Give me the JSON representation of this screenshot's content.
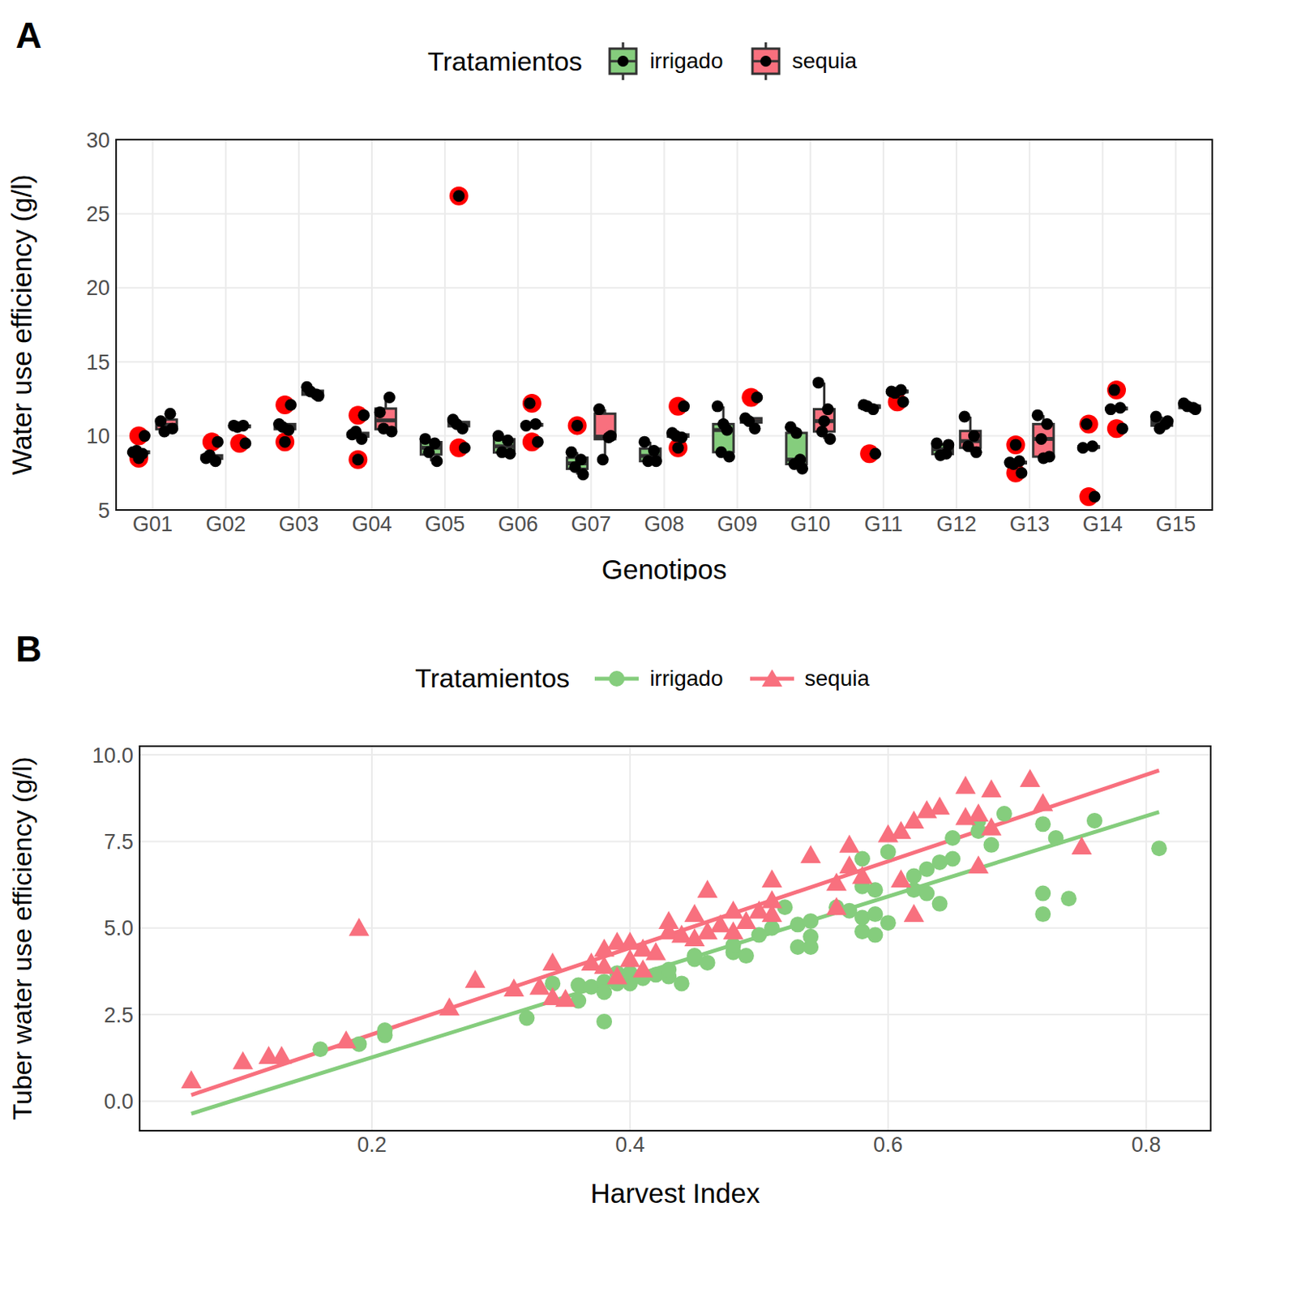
{
  "chart_data": [
    {
      "type": "box",
      "title": "A",
      "x_label": "Genotipos",
      "y_label": "Water use efficiency (g/l)",
      "legend_title": "Tratamientos",
      "legend": "top",
      "grid": true,
      "categories": [
        "G01",
        "G02",
        "G03",
        "G04",
        "G05",
        "G06",
        "G07",
        "G08",
        "G09",
        "G10",
        "G11",
        "G12",
        "G13",
        "G14",
        "G15"
      ],
      "ylim": [
        5,
        30
      ],
      "yticks": [
        5,
        10,
        15,
        20,
        25,
        30
      ],
      "series": [
        {
          "name": "irrigado",
          "color": "#85CD7D",
          "boxes": [
            {
              "low": 8.8,
              "q1": 8.85,
              "median": 8.9,
              "q3": 8.95,
              "high": 9.0,
              "points": [
                8.9,
                8.8,
                9.0,
                10.0,
                8.5
              ],
              "outliers": [
                10.0,
                8.5
              ]
            },
            {
              "low": 8.3,
              "q1": 8.45,
              "median": 8.55,
              "q3": 8.7,
              "high": 8.7,
              "points": [
                8.5,
                8.3,
                8.7,
                9.6
              ],
              "outliers": [
                9.6
              ]
            },
            {
              "low": 10.4,
              "q1": 10.45,
              "median": 10.6,
              "q3": 10.8,
              "high": 10.8,
              "points": [
                10.8,
                10.4,
                10.6,
                12.1,
                9.6
              ],
              "outliers": [
                12.1,
                9.6
              ]
            },
            {
              "low": 9.8,
              "q1": 9.95,
              "median": 10.1,
              "q3": 10.2,
              "high": 10.3,
              "points": [
                10.1,
                9.8,
                10.3,
                11.4,
                8.4
              ],
              "outliers": [
                11.4,
                8.4
              ]
            },
            {
              "low": 8.3,
              "q1": 8.75,
              "median": 9.2,
              "q3": 9.58,
              "high": 9.8,
              "points": [
                9.8,
                9.5,
                8.9,
                8.3
              ],
              "outliers": []
            },
            {
              "low": 8.8,
              "q1": 8.88,
              "median": 9.3,
              "q3": 9.78,
              "high": 10.0,
              "points": [
                10.0,
                9.7,
                8.9,
                8.8
              ],
              "outliers": []
            },
            {
              "low": 7.4,
              "q1": 7.78,
              "median": 8.15,
              "q3": 8.53,
              "high": 8.9,
              "points": [
                8.9,
                8.4,
                7.9,
                7.4,
                10.7
              ],
              "outliers": [
                10.7
              ]
            },
            {
              "low": 8.3,
              "q1": 8.3,
              "median": 8.65,
              "q3": 9.15,
              "high": 9.6,
              "points": [
                9.6,
                9.0,
                8.3,
                8.3
              ],
              "outliers": []
            },
            {
              "low": 8.6,
              "q1": 8.9,
              "median": 10.4,
              "q3": 10.8,
              "high": 12.0,
              "points": [
                12.0,
                10.4,
                8.9,
                8.6,
                10.8
              ],
              "outliers": []
            },
            {
              "low": 7.8,
              "q1": 8.1,
              "median": 8.4,
              "q3": 10.2,
              "high": 10.6,
              "points": [
                10.6,
                8.4,
                8.1,
                7.8,
                10.2
              ],
              "outliers": []
            },
            {
              "low": 11.8,
              "q1": 11.9,
              "median": 12.0,
              "q3": 12.05,
              "high": 12.1,
              "points": [
                12.1,
                11.8,
                12.0,
                8.8
              ],
              "outliers": [
                8.8
              ]
            },
            {
              "low": 8.7,
              "q1": 8.78,
              "median": 9.1,
              "q3": 9.43,
              "high": 9.5,
              "points": [
                9.5,
                8.8,
                8.7,
                9.4
              ],
              "outliers": []
            },
            {
              "low": 8.1,
              "q1": 8.15,
              "median": 8.2,
              "q3": 8.25,
              "high": 8.3,
              "points": [
                8.2,
                8.3,
                8.1,
                7.5,
                9.4
              ],
              "outliers": [
                7.5,
                9.4
              ]
            },
            {
              "low": 9.2,
              "q1": 9.2,
              "median": 9.25,
              "q3": 9.3,
              "high": 9.3,
              "points": [
                9.2,
                9.3,
                10.8,
                5.9
              ],
              "outliers": [
                10.8,
                5.9
              ]
            },
            {
              "low": 10.5,
              "q1": 10.7,
              "median": 10.9,
              "q3": 11.08,
              "high": 11.3,
              "points": [
                11.3,
                10.8,
                10.5,
                11.0
              ],
              "outliers": []
            }
          ]
        },
        {
          "name": "sequia",
          "color": "#F8707E",
          "boxes": [
            {
              "low": 10.3,
              "q1": 10.45,
              "median": 10.75,
              "q3": 11.1,
              "high": 11.5,
              "points": [
                11.0,
                11.5,
                10.3,
                10.5
              ],
              "outliers": []
            },
            {
              "low": 10.6,
              "q1": 10.6,
              "median": 10.65,
              "q3": 10.7,
              "high": 10.7,
              "points": [
                10.7,
                10.7,
                10.6,
                9.5
              ],
              "outliers": [
                9.5
              ]
            },
            {
              "low": 12.7,
              "q1": 12.78,
              "median": 12.9,
              "q3": 13.05,
              "high": 13.3,
              "points": [
                13.3,
                12.8,
                13.0,
                12.7
              ],
              "outliers": []
            },
            {
              "low": 10.3,
              "q1": 10.45,
              "median": 11.05,
              "q3": 11.85,
              "high": 12.6,
              "points": [
                11.6,
                12.6,
                10.5,
                10.3
              ],
              "outliers": []
            },
            {
              "low": 10.5,
              "q1": 10.65,
              "median": 10.8,
              "q3": 10.95,
              "high": 11.1,
              "points": [
                11.1,
                10.5,
                10.8,
                9.2,
                26.2
              ],
              "outliers": [
                9.2,
                26.2
              ]
            },
            {
              "low": 10.7,
              "q1": 10.7,
              "median": 10.75,
              "q3": 10.8,
              "high": 10.8,
              "points": [
                10.7,
                10.8,
                12.2,
                9.6
              ],
              "outliers": [
                12.2,
                9.6
              ]
            },
            {
              "low": 8.4,
              "q1": 9.78,
              "median": 9.95,
              "q3": 11.5,
              "high": 11.8,
              "points": [
                11.8,
                9.9,
                8.4,
                10.0
              ],
              "outliers": []
            },
            {
              "low": 9.9,
              "q1": 9.95,
              "median": 10.0,
              "q3": 10.1,
              "high": 10.2,
              "points": [
                10.2,
                9.9,
                10.0,
                12.0,
                9.2
              ],
              "outliers": [
                12.0,
                9.2
              ]
            },
            {
              "low": 10.5,
              "q1": 10.9,
              "median": 11.0,
              "q3": 11.2,
              "high": 11.2,
              "points": [
                11.2,
                10.5,
                11.0,
                12.6
              ],
              "outliers": [
                12.6
              ]
            },
            {
              "low": 9.8,
              "q1": 10.3,
              "median": 11.0,
              "q3": 11.8,
              "high": 13.6,
              "points": [
                13.6,
                11.8,
                10.3,
                9.8,
                11.0
              ],
              "outliers": []
            },
            {
              "low": 12.9,
              "q1": 12.95,
              "median": 13.0,
              "q3": 13.05,
              "high": 13.1,
              "points": [
                13.0,
                13.1,
                12.9,
                12.3
              ],
              "outliers": [
                12.3
              ]
            },
            {
              "low": 8.9,
              "q1": 9.2,
              "median": 9.65,
              "q3": 10.33,
              "high": 11.3,
              "points": [
                11.3,
                10.0,
                9.3,
                8.9
              ],
              "outliers": []
            },
            {
              "low": 8.5,
              "q1": 8.6,
              "median": 9.8,
              "q3": 10.8,
              "high": 11.4,
              "points": [
                11.4,
                10.8,
                9.8,
                8.6,
                8.5
              ],
              "outliers": []
            },
            {
              "low": 11.8,
              "q1": 11.8,
              "median": 11.85,
              "q3": 11.9,
              "high": 11.9,
              "points": [
                11.8,
                11.9,
                13.1,
                10.5
              ],
              "outliers": [
                13.1,
                10.5
              ]
            },
            {
              "low": 11.8,
              "q1": 11.88,
              "median": 11.95,
              "q3": 12.05,
              "high": 12.2,
              "points": [
                12.2,
                11.9,
                12.0,
                11.8
              ],
              "outliers": []
            }
          ]
        }
      ]
    },
    {
      "type": "scatter",
      "title": "B",
      "x_label": "Harvest Index",
      "y_label": "Tuber water use efficiency (g/l)",
      "legend_title": "Tratamientos",
      "legend": "top",
      "grid": true,
      "xlim": [
        0.02,
        0.85
      ],
      "xticks": [
        0.2,
        0.4,
        0.6,
        0.8
      ],
      "ylim": [
        -0.85,
        10.25
      ],
      "yticks": [
        {
          "value": 0,
          "label": "0.0"
        },
        2.5,
        {
          "value": 5,
          "label": "5.0"
        },
        7.5,
        {
          "value": 10,
          "label": "10.0"
        }
      ],
      "series": [
        {
          "name": "irrigado",
          "color": "#85CD7D",
          "marker": "circle",
          "x": [
            0.16,
            0.19,
            0.21,
            0.21,
            0.32,
            0.34,
            0.36,
            0.36,
            0.37,
            0.38,
            0.38,
            0.38,
            0.39,
            0.39,
            0.4,
            0.4,
            0.41,
            0.42,
            0.43,
            0.43,
            0.44,
            0.45,
            0.45,
            0.46,
            0.48,
            0.48,
            0.49,
            0.5,
            0.51,
            0.52,
            0.53,
            0.53,
            0.54,
            0.54,
            0.54,
            0.56,
            0.57,
            0.58,
            0.58,
            0.58,
            0.58,
            0.59,
            0.59,
            0.59,
            0.6,
            0.6,
            0.62,
            0.62,
            0.63,
            0.63,
            0.64,
            0.64,
            0.65,
            0.65,
            0.67,
            0.67,
            0.68,
            0.69,
            0.72,
            0.72,
            0.72,
            0.73,
            0.74,
            0.76,
            0.81
          ],
          "values": [
            1.5,
            1.65,
            1.9,
            2.05,
            2.4,
            3.4,
            3.35,
            2.9,
            3.3,
            3.45,
            3.15,
            2.3,
            3.7,
            3.4,
            3.4,
            3.7,
            3.55,
            3.65,
            3.6,
            3.8,
            3.4,
            4.1,
            4.2,
            4.0,
            4.3,
            4.5,
            4.2,
            4.8,
            5.0,
            5.6,
            4.45,
            5.1,
            4.45,
            4.75,
            5.2,
            5.6,
            5.5,
            7.0,
            6.2,
            4.9,
            5.3,
            6.1,
            5.4,
            4.8,
            7.2,
            5.15,
            6.1,
            6.5,
            6.7,
            6.0,
            6.9,
            5.7,
            7.0,
            7.6,
            7.8,
            8.1,
            7.4,
            8.3,
            8.0,
            6.0,
            5.4,
            7.6,
            5.85,
            8.1,
            7.3
          ],
          "trend": {
            "x": [
              0.06,
              0.81
            ],
            "values": [
              -0.36,
              8.35
            ]
          }
        },
        {
          "name": "sequia",
          "color": "#F8707E",
          "marker": "triangle",
          "x": [
            0.06,
            0.1,
            0.12,
            0.13,
            0.18,
            0.19,
            0.26,
            0.28,
            0.31,
            0.33,
            0.34,
            0.34,
            0.35,
            0.37,
            0.38,
            0.38,
            0.39,
            0.39,
            0.4,
            0.4,
            0.41,
            0.41,
            0.42,
            0.43,
            0.43,
            0.44,
            0.45,
            0.45,
            0.46,
            0.46,
            0.47,
            0.48,
            0.48,
            0.49,
            0.5,
            0.51,
            0.51,
            0.51,
            0.54,
            0.56,
            0.56,
            0.57,
            0.57,
            0.58,
            0.6,
            0.61,
            0.61,
            0.62,
            0.62,
            0.63,
            0.64,
            0.66,
            0.66,
            0.67,
            0.67,
            0.68,
            0.68,
            0.71,
            0.72,
            0.75
          ],
          "values": [
            0.6,
            1.15,
            1.3,
            1.3,
            1.75,
            5.0,
            2.7,
            3.5,
            3.25,
            3.3,
            4.0,
            3.0,
            2.95,
            4.0,
            4.4,
            3.9,
            4.6,
            3.6,
            4.6,
            4.1,
            4.4,
            3.8,
            4.3,
            5.2,
            4.9,
            4.8,
            5.4,
            4.7,
            6.1,
            4.9,
            5.1,
            5.5,
            4.9,
            5.2,
            5.5,
            6.4,
            5.8,
            5.4,
            7.1,
            6.3,
            5.6,
            7.4,
            6.8,
            6.5,
            7.7,
            7.8,
            6.4,
            8.1,
            5.4,
            8.4,
            8.5,
            9.1,
            8.2,
            8.3,
            6.8,
            9.0,
            7.9,
            9.3,
            8.6,
            7.35
          ],
          "trend": {
            "x": [
              0.06,
              0.81
            ],
            "values": [
              0.18,
              9.55
            ]
          }
        }
      ]
    }
  ]
}
